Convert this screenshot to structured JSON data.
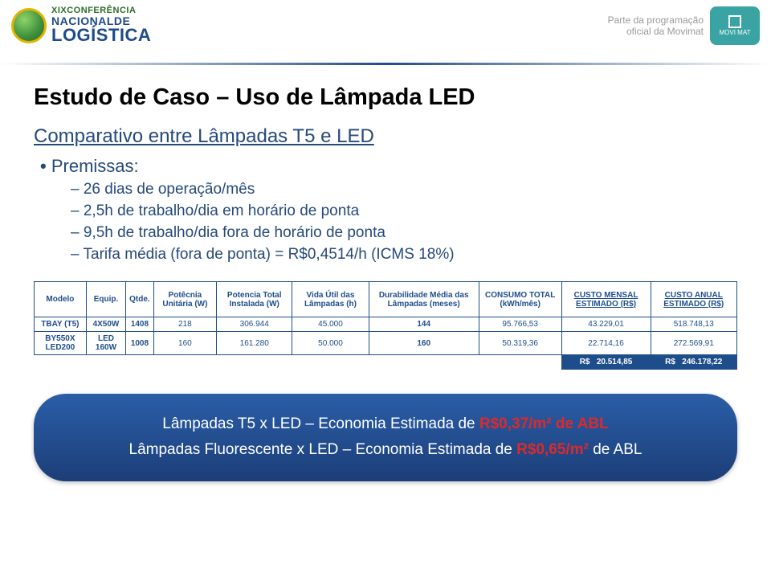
{
  "header": {
    "conf_line1": "XIXCONFERÊNCIA",
    "conf_line2": "NACIONALDE",
    "conf_line3": "LOGÍSTICA",
    "prog_line1": "Parte da programação",
    "prog_line2": "oficial da Movimat",
    "movimat_label": "MOVI MAT"
  },
  "title": "Estudo de Caso – Uso de Lâmpada LED",
  "subtitle": "Comparativo entre Lâmpadas T5 e LED",
  "bullet": "Premissas:",
  "premissas": [
    "26 dias de operação/mês",
    "2,5h de trabalho/dia em horário de ponta",
    "9,5h de trabalho/dia fora de horário de ponta",
    "Tarifa média (fora de ponta) = R$0,4514/h (ICMS 18%)"
  ],
  "table": {
    "headers": [
      "Modelo",
      "Equip.",
      "Qtde.",
      "Potêcnia Unitária (W)",
      "Potencia Total Instalada (W)",
      "Vida Útil das Lâmpadas (h)",
      "Durabilidade Média das Lâmpadas (meses)",
      "CONSUMO TOTAL (kWh/mês)",
      "CUSTO MENSAL ESTIMADO (R$)",
      "CUSTO ANUAL ESTIMADO (R$)"
    ],
    "rows": [
      {
        "model": "TBAY (T5)",
        "equip": "4X50W",
        "qtde": "1408",
        "pot_unit": "218",
        "pot_total": "306.944",
        "vida": "45.000",
        "durab": "144",
        "consumo": "95.766,53",
        "c_mensal": "43.229,01",
        "c_anual": "518.748,13"
      },
      {
        "model": "BY550X LED200",
        "equip": "LED 160W",
        "qtde": "1008",
        "pot_unit": "160",
        "pot_total": "161.280",
        "vida": "50.000",
        "durab": "160",
        "consumo": "50.319,36",
        "c_mensal": "22.714,16",
        "c_anual": "272.569,91"
      }
    ],
    "sum_mensal_prefix": "R$",
    "sum_mensal": "20.514,85",
    "sum_anual_prefix": "R$",
    "sum_anual": "246.178,22"
  },
  "pill": {
    "line1_a": "Lâmpadas T5 x LED – Economia Estimada de ",
    "line1_b": "R$0,37/m² de ABL",
    "line2_a": "Lâmpadas Fluorescente x LED – Economia Estimada de ",
    "line2_b": "R$0,65/m²",
    "line2_c": " de ABL"
  },
  "colors": {
    "brand_blue": "#1e4d8c",
    "accent_red": "#dc2a2a",
    "text_blue": "#254a7a"
  }
}
